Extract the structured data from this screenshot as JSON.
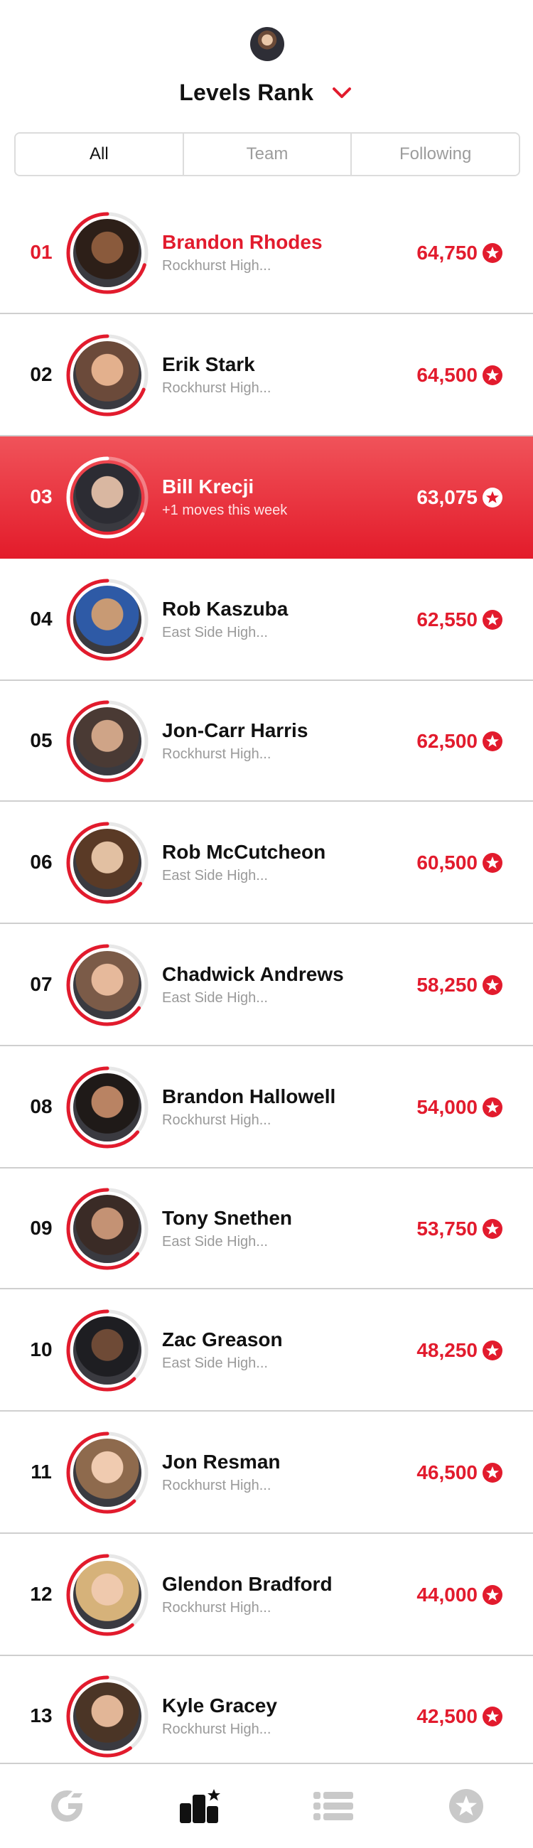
{
  "header": {
    "title": "Levels Rank"
  },
  "tabs": [
    {
      "label": "All",
      "active": true
    },
    {
      "label": "Team",
      "active": false
    },
    {
      "label": "Following",
      "active": false
    }
  ],
  "rows": [
    {
      "rank": "01",
      "name": "Brandon Rhodes",
      "school": "Rockhurst High...",
      "points": "64,750",
      "progress": 0.7,
      "leader": true
    },
    {
      "rank": "02",
      "name": "Erik Stark",
      "school": "Rockhurst High...",
      "points": "64,500",
      "progress": 0.69
    },
    {
      "rank": "03",
      "name": "Bill Krecji",
      "school": "+1 moves this week",
      "points": "63,075",
      "progress": 0.68,
      "current": true
    },
    {
      "rank": "04",
      "name": "Rob Kaszuba",
      "school": "East Side High...",
      "points": "62,550",
      "progress": 0.67
    },
    {
      "rank": "05",
      "name": "Jon-Carr Harris",
      "school": "Rockhurst High...",
      "points": "62,500",
      "progress": 0.67
    },
    {
      "rank": "06",
      "name": "Rob McCutcheon",
      "school": "East Side High...",
      "points": "60,500",
      "progress": 0.66
    },
    {
      "rank": "07",
      "name": "Chadwick Andrews",
      "school": "East Side High...",
      "points": "58,250",
      "progress": 0.65
    },
    {
      "rank": "08",
      "name": "Brandon Hallowell",
      "school": "Rockhurst High...",
      "points": "54,000",
      "progress": 0.64
    },
    {
      "rank": "09",
      "name": "Tony Snethen",
      "school": "East Side High...",
      "points": "53,750",
      "progress": 0.64
    },
    {
      "rank": "10",
      "name": "Zac Greason",
      "school": "East Side High...",
      "points": "48,250",
      "progress": 0.62
    },
    {
      "rank": "11",
      "name": "Jon Resman",
      "school": "Rockhurst High...",
      "points": "46,500",
      "progress": 0.62
    },
    {
      "rank": "12",
      "name": "Glendon Bradford",
      "school": "Rockhurst High...",
      "points": "44,000",
      "progress": 0.61
    },
    {
      "rank": "13",
      "name": "Kyle Gracey",
      "school": "Rockhurst High...",
      "points": "42,500",
      "progress": 0.6
    }
  ],
  "nav": [
    {
      "icon": "g-logo-icon",
      "active": false
    },
    {
      "icon": "leaderboard-icon",
      "active": true
    },
    {
      "icon": "list-icon",
      "active": false
    },
    {
      "icon": "star-icon",
      "active": false
    }
  ],
  "colors": {
    "accent": "#e21b2d",
    "accent_light": "#f0535a",
    "muted": "#9a9a9a",
    "divider": "#cfcfcf"
  }
}
